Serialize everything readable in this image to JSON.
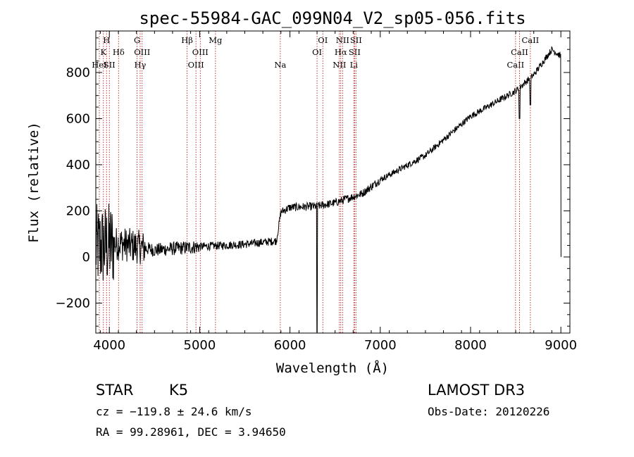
{
  "chart_data": {
    "type": "line",
    "title": "spec-55984-GAC_099N04_V2_sp05-056.fits",
    "xlabel": "Wavelength (Å)",
    "ylabel": "Flux (relative)",
    "xlim": [
      3850,
      9100
    ],
    "ylim": [
      -330,
      980
    ],
    "xticks": [
      4000,
      5000,
      6000,
      7000,
      8000,
      9000
    ],
    "xtick_labels": [
      "4000",
      "5000",
      "6000",
      "7000",
      "8000",
      "9000"
    ],
    "yticks": [
      -200,
      0,
      200,
      400,
      600,
      800
    ],
    "ytick_labels": [
      "−200",
      "0",
      "200",
      "400",
      "600",
      "800"
    ],
    "grid": false,
    "spectrum_trend": {
      "x": [
        3850,
        4100,
        4500,
        5000,
        5500,
        5850,
        5900,
        6000,
        6300,
        6500,
        6800,
        7000,
        7500,
        8000,
        8500,
        8700,
        8900,
        9000
      ],
      "y": [
        40,
        60,
        30,
        45,
        55,
        70,
        195,
        215,
        220,
        235,
        275,
        335,
        440,
        610,
        720,
        790,
        900,
        870
      ]
    },
    "spectrum_features": [
      {
        "x": 6300,
        "y": -340,
        "note": "strong narrow drop"
      },
      {
        "x": 8540,
        "y": 620,
        "note": "CaII absorption"
      },
      {
        "x": 8660,
        "y": 680,
        "note": "CaII absorption"
      },
      {
        "x": 9005,
        "y": 0,
        "note": "edge drop"
      }
    ],
    "lines": [
      {
        "x": 3889,
        "label": "HeI",
        "row": 3
      },
      {
        "x": 3934,
        "label": "K",
        "row": 2
      },
      {
        "x": 3969,
        "label": "H",
        "row": 1
      },
      {
        "x": 4000,
        "label": "SII",
        "row": 3
      },
      {
        "x": 4102,
        "label": "Hδ",
        "row": 2
      },
      {
        "x": 4307,
        "label": "G",
        "row": 1
      },
      {
        "x": 4341,
        "label": "Hγ",
        "row": 3
      },
      {
        "x": 4363,
        "label": "OIII",
        "row": 2
      },
      {
        "x": 4861,
        "label": "Hβ",
        "row": 1
      },
      {
        "x": 4959,
        "label": "OIII",
        "row": 3
      },
      {
        "x": 5007,
        "label": "OIII",
        "row": 2
      },
      {
        "x": 5175,
        "label": "Mg",
        "row": 1
      },
      {
        "x": 5893,
        "label": "Na",
        "row": 3
      },
      {
        "x": 6300,
        "label": "OI",
        "row": 2
      },
      {
        "x": 6364,
        "label": "OI",
        "row": 1
      },
      {
        "x": 6548,
        "label": "NII",
        "row": 3
      },
      {
        "x": 6563,
        "label": "Hα",
        "row": 2
      },
      {
        "x": 6583,
        "label": "NII",
        "row": 1
      },
      {
        "x": 6707,
        "label": "Li",
        "row": 3
      },
      {
        "x": 6716,
        "label": "SII",
        "row": 2
      },
      {
        "x": 6731,
        "label": "SII",
        "row": 1
      },
      {
        "x": 8498,
        "label": "CaII",
        "row": 3
      },
      {
        "x": 8542,
        "label": "CaII",
        "row": 2
      },
      {
        "x": 8662,
        "label": "CaII",
        "row": 1
      }
    ]
  },
  "info": {
    "class": "STAR",
    "subclass": "K5",
    "survey": "LAMOST DR3",
    "cz": "cz = −119.8 ± 24.6 km/s",
    "obs_date": "Obs-Date: 20120226",
    "coords": "RA =  99.28961, DEC =   3.94650"
  },
  "colors": {
    "line_marker": "#b22222",
    "spectrum": "#000000",
    "text": "#000000"
  }
}
